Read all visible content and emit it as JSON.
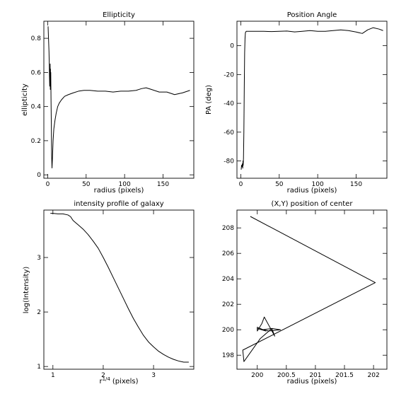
{
  "chart_data": [
    {
      "type": "line",
      "title": "Ellipticity",
      "xlabel": "radius (pixels)",
      "ylabel": "ellipticity",
      "xlim": [
        -5,
        190
      ],
      "ylim": [
        -0.02,
        0.9
      ],
      "xticks": [
        0,
        50,
        100,
        150
      ],
      "yticks": [
        0,
        0.2,
        0.4,
        0.6,
        0.8
      ],
      "series": [
        {
          "x": [
            0.5,
            0.9,
            1.3,
            1.7,
            2.0,
            2.3,
            2.6,
            2.8,
            3.0,
            3.2,
            3.4,
            3.6,
            3.8,
            4.0,
            4.3,
            4.7,
            5.1,
            5.6,
            6.2,
            7.0,
            8.0,
            9.5,
            11,
            13,
            15,
            18,
            22,
            27,
            33,
            40,
            47,
            55,
            65,
            75,
            85,
            95,
            105,
            115,
            122,
            128,
            135,
            145,
            155,
            165,
            175,
            185
          ],
          "y": [
            0.87,
            0.82,
            0.77,
            0.72,
            0.66,
            0.58,
            0.52,
            0.62,
            0.55,
            0.65,
            0.5,
            0.62,
            0.52,
            0.6,
            0.45,
            0.3,
            0.12,
            0.04,
            0.1,
            0.2,
            0.27,
            0.32,
            0.36,
            0.4,
            0.42,
            0.44,
            0.46,
            0.47,
            0.48,
            0.49,
            0.495,
            0.495,
            0.49,
            0.49,
            0.485,
            0.49,
            0.49,
            0.495,
            0.505,
            0.51,
            0.5,
            0.485,
            0.485,
            0.47,
            0.48,
            0.495
          ]
        }
      ]
    },
    {
      "type": "line",
      "title": "Position Angle",
      "xlabel": "radius (pixels)",
      "ylabel": "PA (deg)",
      "xlim": [
        -5,
        190
      ],
      "ylim": [
        -92,
        17
      ],
      "xticks": [
        0,
        50,
        100,
        150
      ],
      "yticks": [
        -80,
        -60,
        -40,
        -20,
        0
      ],
      "series": [
        {
          "x": [
            0.5,
            1.0,
            1.5,
            2.0,
            2.5,
            2.8,
            3.1,
            3.5,
            4.0,
            4.5,
            5.0,
            5.5,
            6,
            7,
            8,
            10,
            15,
            20,
            30,
            40,
            50,
            60,
            70,
            80,
            90,
            100,
            110,
            120,
            130,
            140,
            150,
            158,
            165,
            172,
            180,
            185
          ],
          "y": [
            -86,
            -83,
            -84,
            -82,
            -85,
            -80,
            -83,
            -78,
            -60,
            -30,
            -5,
            5,
            9,
            10,
            10,
            10,
            10,
            10,
            10,
            9.8,
            10,
            10.2,
            9.6,
            10,
            10.5,
            10,
            10,
            10.5,
            11,
            10.5,
            9.5,
            8.5,
            11,
            12.5,
            11.5,
            10.5
          ]
        }
      ]
    },
    {
      "type": "line",
      "title": "intensity profile of galaxy",
      "xlabel": "r",
      "xlabel_sup": "1/4",
      "xlabel_unit": "(pixels)",
      "ylabel": "log(Intensity)",
      "xlim": [
        0.82,
        3.8
      ],
      "ylim": [
        0.95,
        3.87
      ],
      "xticks": [
        1,
        2,
        3
      ],
      "yticks": [
        1,
        2,
        3
      ],
      "series": [
        {
          "x": [
            0.95,
            1.0,
            1.1,
            1.2,
            1.3,
            1.35,
            1.4,
            1.45,
            1.5,
            1.6,
            1.7,
            1.8,
            1.9,
            2.0,
            2.1,
            2.2,
            2.3,
            2.4,
            2.5,
            2.6,
            2.7,
            2.8,
            2.9,
            3.0,
            3.1,
            3.2,
            3.3,
            3.4,
            3.5,
            3.6,
            3.7
          ],
          "y": [
            3.81,
            3.81,
            3.8,
            3.8,
            3.78,
            3.75,
            3.68,
            3.64,
            3.6,
            3.52,
            3.42,
            3.3,
            3.17,
            3.0,
            2.82,
            2.63,
            2.44,
            2.25,
            2.06,
            1.88,
            1.72,
            1.57,
            1.45,
            1.36,
            1.28,
            1.22,
            1.17,
            1.13,
            1.1,
            1.08,
            1.08
          ]
        }
      ]
    },
    {
      "type": "line",
      "title": "(X,Y) position of center",
      "xlabel": "radius (pixels)",
      "ylabel": "",
      "xlim": [
        199.65,
        202.23
      ],
      "ylim": [
        196.9,
        209.4
      ],
      "xticks": [
        200,
        200.5,
        201,
        201.5,
        202
      ],
      "yticks": [
        198,
        200,
        202,
        204,
        206,
        208
      ],
      "series": [
        {
          "x": [
            199.88,
            202.03,
            199.75,
            199.77,
            200.05,
            200.25,
            200.3,
            200.12,
            200.08,
            200.0,
            200.0,
            200.1,
            200.2,
            200.4,
            200.25,
            200.08,
            200.0,
            200.15,
            200.05
          ],
          "y": [
            208.9,
            203.7,
            198.4,
            197.5,
            199.3,
            200.1,
            199.5,
            201.0,
            200.5,
            199.9,
            200.2,
            200.0,
            199.9,
            200.0,
            200.1,
            200.0,
            200.1,
            199.9,
            200.05
          ]
        }
      ]
    }
  ]
}
